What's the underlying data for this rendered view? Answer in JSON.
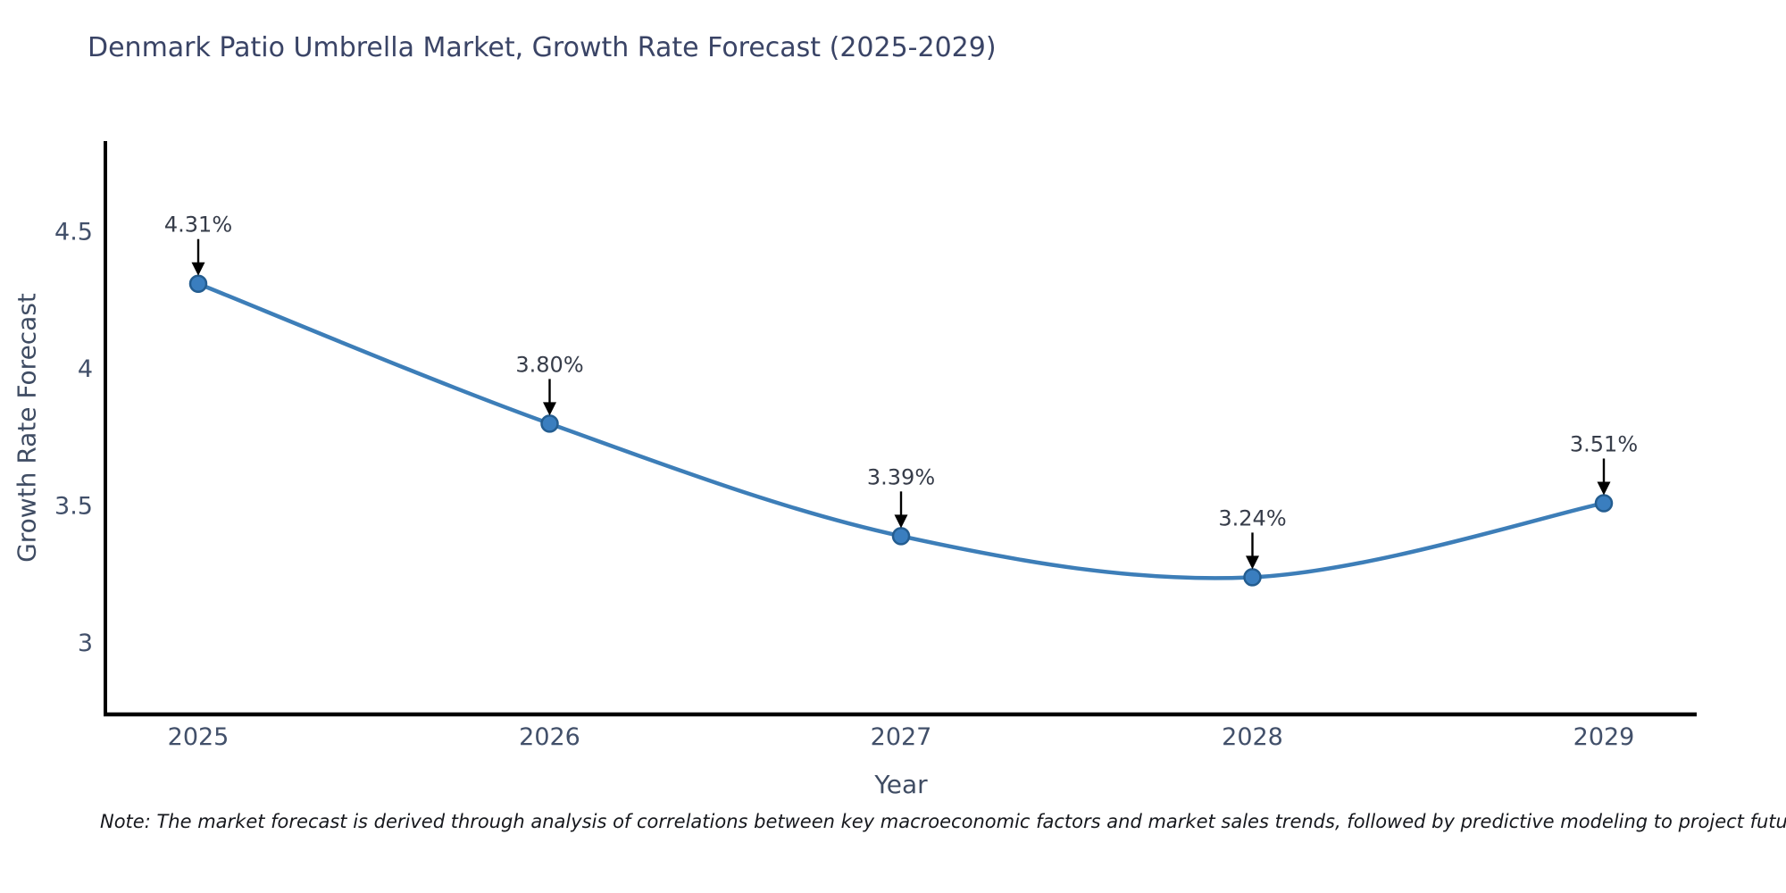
{
  "chart_data": {
    "type": "line",
    "title": "Denmark Patio Umbrella Market, Growth Rate Forecast (2025-2029)",
    "xlabel": "Year",
    "ylabel": "Growth Rate Forecast",
    "categories": [
      "2025",
      "2026",
      "2027",
      "2028",
      "2029"
    ],
    "series": [
      {
        "name": "Growth Rate Forecast",
        "values": [
          4.31,
          3.8,
          3.39,
          3.24,
          3.51
        ],
        "point_labels": [
          "4.31%",
          "3.80%",
          "3.39%",
          "3.24%",
          "3.51%"
        ]
      }
    ],
    "yticks": [
      3,
      3.5,
      4,
      4.5
    ],
    "ylim": [
      2.74,
      4.83
    ],
    "grid": false,
    "legend_position": "none",
    "line_shape": "spline",
    "marker": "circle",
    "annotation_arrows": true,
    "colors": {
      "line": "#3d7eb8",
      "marker_fill": "#3a7ebf",
      "marker_edge": "#245d90",
      "axis": "#000000",
      "arrow": "#000000",
      "tick_text": "#42506a",
      "annotation_text": "#363c49"
    },
    "note": "Note: The market forecast is derived through analysis of correlations between key macroeconomic factors and market sales trends, followed by predictive modeling to project future sales"
  }
}
